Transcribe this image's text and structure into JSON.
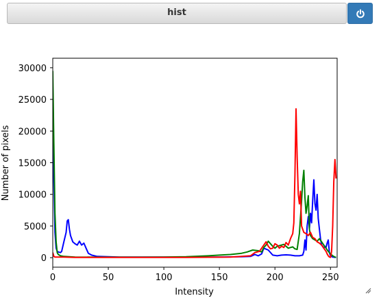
{
  "window": {
    "title": "hist"
  },
  "icons": {
    "power": "power-icon",
    "resize": "resize-grip-icon"
  },
  "colors": {
    "button": "#337ab7",
    "blue": "#0000ff",
    "green": "#008000",
    "red": "#ff0000"
  },
  "chart_data": {
    "type": "line",
    "title": "",
    "xlabel": "Intensity",
    "ylabel": "Number of pixels",
    "xlim": [
      0,
      256
    ],
    "ylim": [
      -1500,
      31500
    ],
    "xticks": [
      0,
      50,
      100,
      150,
      200,
      250
    ],
    "yticks": [
      0,
      5000,
      10000,
      15000,
      20000,
      25000,
      30000
    ],
    "grid": false,
    "series": [
      {
        "color": "#0000ff",
        "x": [
          0,
          1,
          2,
          3,
          4,
          5,
          7,
          8,
          10,
          12,
          13,
          14,
          15,
          16,
          18,
          20,
          22,
          24,
          26,
          28,
          30,
          32,
          35,
          40,
          60,
          100,
          150,
          170,
          178,
          182,
          185,
          188,
          190,
          194,
          198,
          202,
          206,
          210,
          214,
          218,
          222,
          225,
          226,
          227,
          228,
          229,
          230,
          231,
          232,
          233,
          234,
          235,
          236,
          237,
          238,
          239,
          240,
          241,
          242,
          243,
          244,
          245,
          246,
          247,
          248,
          249,
          250,
          251,
          252,
          253,
          254,
          255
        ],
        "y": [
          27000,
          12000,
          4000,
          1500,
          1000,
          900,
          800,
          1000,
          2500,
          4000,
          5800,
          6000,
          4500,
          3500,
          2500,
          2200,
          2000,
          2600,
          2000,
          2300,
          1500,
          700,
          400,
          200,
          100,
          100,
          100,
          150,
          200,
          500,
          300,
          600,
          1500,
          1200,
          400,
          300,
          400,
          450,
          400,
          300,
          300,
          400,
          1000,
          2800,
          1200,
          5000,
          6500,
          4500,
          7000,
          5500,
          9000,
          12300,
          8500,
          7500,
          10000,
          6200,
          4500,
          3000,
          2000,
          1800,
          1500,
          1800,
          1600,
          2300,
          2800,
          800,
          300,
          200,
          100,
          80,
          50,
          40
        ]
      },
      {
        "color": "#008000",
        "x": [
          0,
          1,
          2,
          3,
          4,
          5,
          7,
          10,
          15,
          20,
          40,
          80,
          100,
          120,
          140,
          150,
          160,
          170,
          175,
          180,
          185,
          188,
          190,
          192,
          194,
          196,
          198,
          200,
          202,
          204,
          206,
          208,
          210,
          212,
          214,
          216,
          218,
          220,
          222,
          224,
          225,
          226,
          227,
          228,
          229,
          230,
          231,
          232,
          234,
          236,
          238,
          240,
          242,
          244,
          246,
          248,
          250,
          252,
          254,
          255
        ],
        "y": [
          29500,
          18000,
          7000,
          2500,
          800,
          500,
          300,
          200,
          150,
          100,
          80,
          80,
          100,
          150,
          300,
          400,
          500,
          700,
          900,
          1200,
          1100,
          900,
          1600,
          2000,
          2600,
          2200,
          1800,
          1500,
          1800,
          1900,
          2000,
          2100,
          1800,
          1500,
          1600,
          1700,
          1400,
          1300,
          3800,
          9000,
          12000,
          13800,
          9500,
          7000,
          8200,
          9800,
          4500,
          3500,
          3000,
          2800,
          2600,
          3000,
          2500,
          2000,
          1500,
          1000,
          600,
          300,
          100,
          50
        ]
      },
      {
        "color": "#ff0000",
        "x": [
          0,
          1,
          2,
          3,
          5,
          10,
          20,
          40,
          80,
          100,
          120,
          150,
          160,
          170,
          178,
          182,
          186,
          188,
          190,
          192,
          194,
          196,
          198,
          200,
          202,
          204,
          206,
          208,
          210,
          212,
          214,
          216,
          217,
          218,
          219,
          220,
          221,
          222,
          223,
          224,
          225,
          226,
          228,
          230,
          232,
          234,
          236,
          238,
          240,
          242,
          244,
          246,
          247,
          248,
          249,
          250,
          251,
          252,
          253,
          254,
          255
        ],
        "y": [
          800,
          200,
          100,
          100,
          100,
          100,
          50,
          50,
          50,
          50,
          50,
          80,
          100,
          200,
          300,
          800,
          1000,
          1500,
          2000,
          2500,
          1800,
          1400,
          1500,
          2200,
          2000,
          1500,
          1800,
          1600,
          2400,
          2000,
          3000,
          3800,
          5500,
          13000,
          23500,
          16000,
          10000,
          8500,
          10500,
          5000,
          4500,
          4000,
          3800,
          3500,
          4000,
          3200,
          3000,
          2500,
          2300,
          2000,
          1500,
          1000,
          600,
          300,
          100,
          50,
          1000,
          5000,
          12000,
          15500,
          12500
        ]
      }
    ]
  }
}
